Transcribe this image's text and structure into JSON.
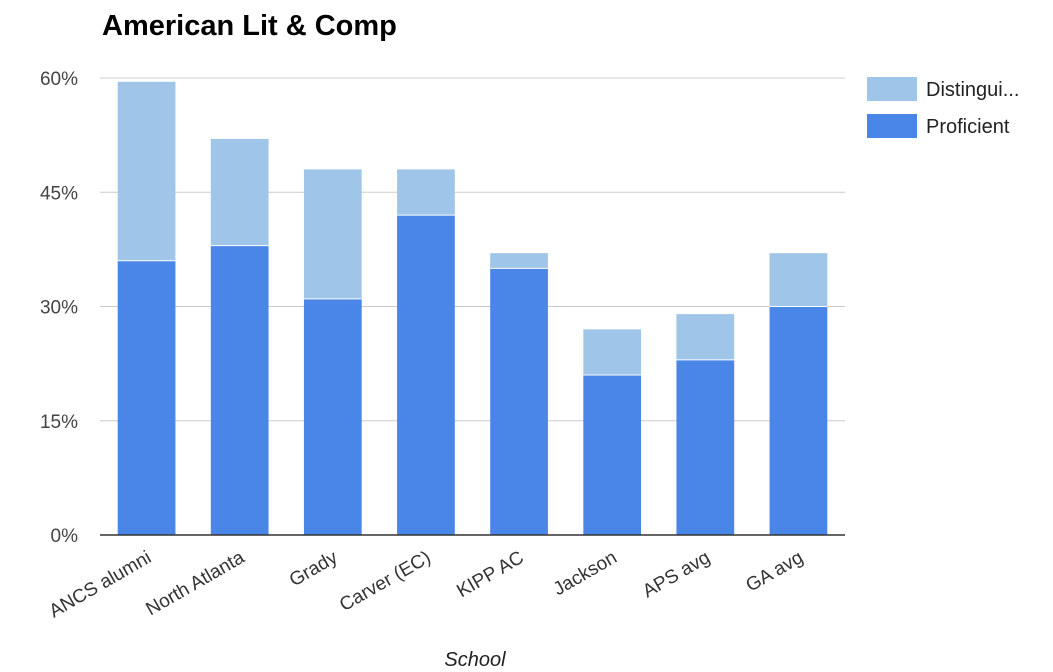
{
  "chart_data": {
    "type": "bar",
    "stacked": true,
    "title": "American Lit & Comp",
    "xlabel": "School",
    "ylabel": "",
    "categories": [
      "ANCS alumni",
      "North Atlanta",
      "Grady",
      "Carver (EC)",
      "KIPP AC",
      "Jackson",
      "APS avg",
      "GA avg"
    ],
    "series": [
      {
        "name": "Proficient",
        "color": "#4a86e8",
        "values": [
          36,
          38,
          31,
          42,
          35,
          21,
          23,
          30
        ]
      },
      {
        "name": "Distingui...",
        "color": "#9fc5e8",
        "values": [
          23.5,
          14,
          17,
          6,
          2,
          6,
          6,
          7
        ]
      }
    ],
    "ylim": [
      0,
      60
    ],
    "yticks": [
      0,
      15,
      30,
      45,
      60
    ],
    "ytick_labels": [
      "0%",
      "15%",
      "30%",
      "45%",
      "60%"
    ],
    "grid": true,
    "legend_position": "right",
    "legend_order": [
      "Distingui...",
      "Proficient"
    ]
  }
}
